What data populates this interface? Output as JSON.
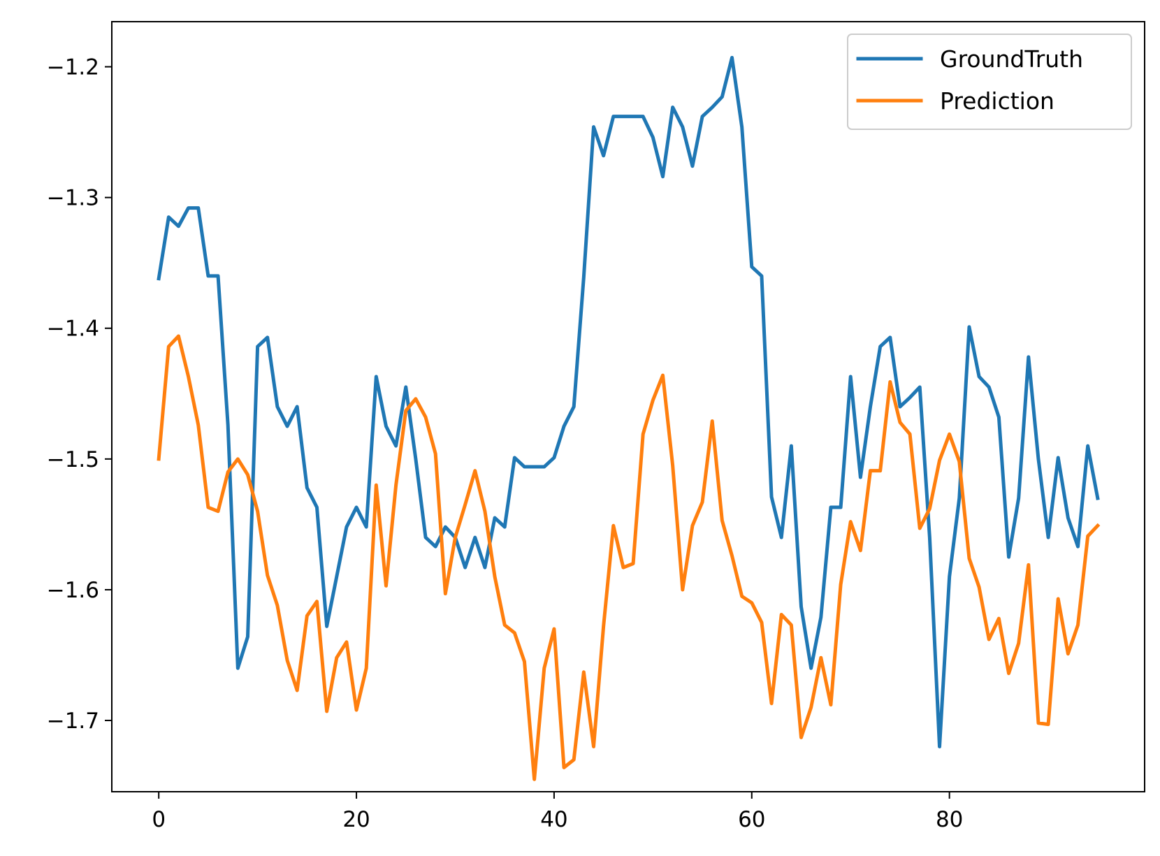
{
  "chart_data": {
    "type": "line",
    "title": "",
    "xlabel": "",
    "ylabel": "",
    "xlim": [
      -4.75,
      99.75
    ],
    "ylim": [
      -1.7545,
      -1.1655
    ],
    "xticks": [
      0,
      20,
      40,
      60,
      80
    ],
    "xtick_labels": [
      "0",
      "20",
      "40",
      "60",
      "80"
    ],
    "yticks": [
      -1.2,
      -1.3,
      -1.4,
      -1.5,
      -1.6,
      -1.7
    ],
    "ytick_labels": [
      "−1.2",
      "−1.3",
      "−1.4",
      "−1.5",
      "−1.6",
      "−1.7"
    ],
    "grid": false,
    "legend_position": "upper right",
    "x": [
      0,
      1,
      2,
      3,
      4,
      5,
      6,
      7,
      8,
      9,
      10,
      11,
      12,
      13,
      14,
      15,
      16,
      17,
      18,
      19,
      20,
      21,
      22,
      23,
      24,
      25,
      26,
      27,
      28,
      29,
      30,
      31,
      32,
      33,
      34,
      35,
      36,
      37,
      38,
      39,
      40,
      41,
      42,
      43,
      44,
      45,
      46,
      47,
      48,
      49,
      50,
      51,
      52,
      53,
      54,
      55,
      56,
      57,
      58,
      59,
      60,
      61,
      62,
      63,
      64,
      65,
      66,
      67,
      68,
      69,
      70,
      71,
      72,
      73,
      74,
      75,
      76,
      77,
      78,
      79,
      80,
      81,
      82,
      83,
      84,
      85,
      86,
      87,
      88,
      89,
      90,
      91,
      92,
      93,
      94,
      95
    ],
    "series": [
      {
        "name": "GroundTruth",
        "color": "#1f77b4",
        "values": [
          -1.362,
          -1.315,
          -1.322,
          -1.308,
          -1.308,
          -1.36,
          -1.36,
          -1.474,
          -1.66,
          -1.636,
          -1.414,
          -1.407,
          -1.46,
          -1.475,
          -1.46,
          -1.522,
          -1.537,
          -1.628,
          -1.59,
          -1.552,
          -1.537,
          -1.552,
          -1.437,
          -1.475,
          -1.49,
          -1.445,
          -1.5,
          -1.56,
          -1.567,
          -1.552,
          -1.56,
          -1.583,
          -1.56,
          -1.583,
          -1.545,
          -1.552,
          -1.499,
          -1.506,
          -1.506,
          -1.506,
          -1.499,
          -1.475,
          -1.46,
          -1.361,
          -1.246,
          -1.268,
          -1.238,
          -1.238,
          -1.238,
          -1.238,
          -1.254,
          -1.284,
          -1.231,
          -1.246,
          -1.276,
          -1.238,
          -1.231,
          -1.223,
          -1.193,
          -1.246,
          -1.353,
          -1.36,
          -1.529,
          -1.56,
          -1.49,
          -1.613,
          -1.66,
          -1.621,
          -1.537,
          -1.537,
          -1.437,
          -1.514,
          -1.46,
          -1.414,
          -1.407,
          -1.46,
          -1.453,
          -1.445,
          -1.56,
          -1.72,
          -1.59,
          -1.53,
          -1.399,
          -1.437,
          -1.445,
          -1.468,
          -1.575,
          -1.53,
          -1.422,
          -1.5,
          -1.56,
          -1.499,
          -1.545,
          -1.567,
          -1.49,
          -1.53
        ]
      },
      {
        "name": "Prediction",
        "color": "#ff7f0e",
        "values": [
          -1.5,
          -1.414,
          -1.406,
          -1.437,
          -1.474,
          -1.537,
          -1.54,
          -1.51,
          -1.5,
          -1.512,
          -1.54,
          -1.589,
          -1.612,
          -1.654,
          -1.677,
          -1.62,
          -1.609,
          -1.693,
          -1.652,
          -1.64,
          -1.692,
          -1.66,
          -1.52,
          -1.597,
          -1.52,
          -1.463,
          -1.454,
          -1.468,
          -1.496,
          -1.603,
          -1.56,
          -1.535,
          -1.509,
          -1.54,
          -1.59,
          -1.627,
          -1.633,
          -1.655,
          -1.745,
          -1.66,
          -1.63,
          -1.736,
          -1.73,
          -1.663,
          -1.72,
          -1.628,
          -1.551,
          -1.583,
          -1.58,
          -1.481,
          -1.455,
          -1.436,
          -1.505,
          -1.6,
          -1.551,
          -1.533,
          -1.471,
          -1.547,
          -1.574,
          -1.605,
          -1.61,
          -1.625,
          -1.687,
          -1.619,
          -1.627,
          -1.713,
          -1.69,
          -1.652,
          -1.688,
          -1.596,
          -1.548,
          -1.57,
          -1.509,
          -1.509,
          -1.441,
          -1.472,
          -1.481,
          -1.553,
          -1.538,
          -1.501,
          -1.481,
          -1.502,
          -1.576,
          -1.598,
          -1.638,
          -1.622,
          -1.664,
          -1.641,
          -1.581,
          -1.702,
          -1.703,
          -1.607,
          -1.649,
          -1.627,
          -1.559,
          -1.551
        ]
      }
    ]
  }
}
